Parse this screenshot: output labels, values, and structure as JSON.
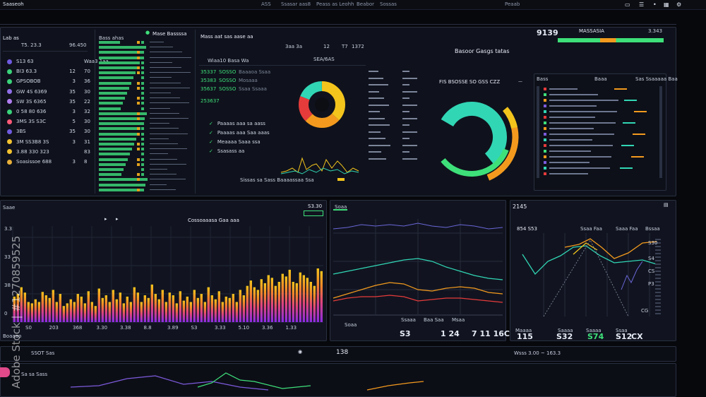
{
  "topbar": {
    "left": "Saaseoh",
    "items": [
      "ASS",
      "Ssasar aas8",
      "Peass as Leohh",
      "Beabor",
      "Sossas"
    ],
    "right_label": "Peaab"
  },
  "left_panel": {
    "title": "Lab as",
    "values": [
      "T5. 23.3",
      "96.450"
    ],
    "rows": [
      {
        "label": "S13 63",
        "v1": "",
        "v2": "Waa3 1aa"
      },
      {
        "label": "BI3 63.3",
        "v1": "12",
        "v2": "70"
      },
      {
        "label": "GPSOBOB",
        "v1": "3",
        "v2": "36"
      },
      {
        "label": "GW 4S 6369",
        "v1": "35",
        "v2": "30"
      },
      {
        "label": "SW 3S 6365",
        "v1": "35",
        "v2": "22"
      },
      {
        "label": "0 58 80 636",
        "v1": "3",
        "v2": "32"
      },
      {
        "label": "3MS 3S S3C",
        "v1": "5",
        "v2": "30"
      },
      {
        "label": "3BS",
        "v1": "35",
        "v2": "30"
      },
      {
        "label": "3M SS3B8 3S",
        "v1": "3",
        "v2": "31"
      },
      {
        "label": "3.88 330 323",
        "v1": "",
        "v2": "83"
      },
      {
        "label": "Soasissoe 688",
        "v1": "3",
        "v2": "8"
      }
    ],
    "row_colors": [
      "#6f5be0",
      "#3ad27a",
      "#3ad27a",
      "#8f6ee8",
      "#b07ef0",
      "#3ad27a",
      "#ff5a78",
      "#6f5be0",
      "#f2c230",
      "#f2c230",
      "#e8b03a"
    ]
  },
  "list_panel": {
    "title": "Bass ahas",
    "header": "Mase Bassssa"
  },
  "top_center": {
    "title": "Mass aat sas aase aa",
    "subtitle": "Wiaa10 Basa Wa",
    "stats": [
      {
        "a": "35337",
        "b": "SOSSO",
        "c": "Baaaoa Ssaa"
      },
      {
        "a": "35383",
        "b": "SOSSO",
        "c": "Mosaaa"
      },
      {
        "a": "35637",
        "b": "SOSSO",
        "c": "Ssaa Ssaaa"
      }
    ],
    "stat_big": "253637",
    "small_counts": [
      "3aa 3a",
      "12",
      "T7",
      "1372"
    ],
    "ring_label": "SEA/6AS",
    "caption": "Sissas sa Sass Baaaassaa Ssa",
    "tasks": [
      "Paaaas aaa sa aass",
      "Paaaas aaa Saa aaas",
      "Meaaaa Saaa ssa",
      "Ssasass aa"
    ]
  },
  "top_right": {
    "title": "Basoor Gasgs tatas",
    "mid_title": "FIS BSOSSE SO GSS CZZ",
    "stat_a": "9139",
    "stat_b": "MASSASIA",
    "stat_c": "3.343",
    "list_header": [
      "Bass",
      "Baaa",
      "Sas Ssaaaaa Baa"
    ],
    "list_rows": 9
  },
  "bottom_left": {
    "title": "Saae",
    "value": "S3.30",
    "header": "Cossoaaasa Gaa aaa",
    "x_labels": [
      "S0",
      "203",
      "368",
      "3.30",
      "3.38",
      "8.8",
      "3.89",
      "S3",
      "3.33",
      "5.10",
      "3.36",
      "1.33"
    ],
    "y_labels": [
      "0",
      "38",
      "33",
      "3.3"
    ],
    "bottom": "Boaaao"
  },
  "bottom_mid": {
    "title": "Soaa",
    "legend": [
      "Ssaaa",
      "Baa Saa",
      "Msaa"
    ],
    "values": [
      "S3",
      "1 24",
      "7 11 16C"
    ]
  },
  "bottom_right": {
    "title": "2145",
    "subtitle": "854 S53",
    "labels": [
      "Ssaa Faa",
      "Saaa Faa",
      "Bssaa"
    ],
    "y_labels": [
      "S30",
      "S4",
      "CS",
      "CG",
      "P3"
    ],
    "bottom": [
      "Maaaa",
      "Saaaa",
      "Saaaa",
      "Ssaa"
    ],
    "bottom_vals": [
      "115",
      "S32",
      "S74",
      "S12",
      "CX"
    ]
  },
  "footer": {
    "label": "SSOT Sas",
    "value": "138",
    "right": "Wsss 3.00 ~ 163.3",
    "legend": "Sa sa Sass"
  },
  "bar_chart_data": {
    "type": "bar",
    "values": [
      38,
      42,
      52,
      44,
      30,
      28,
      34,
      30,
      45,
      40,
      36,
      48,
      30,
      42,
      24,
      28,
      34,
      30,
      42,
      38,
      28,
      46,
      30,
      24,
      50,
      36,
      40,
      30,
      48,
      34,
      44,
      28,
      38,
      30,
      52,
      44,
      30,
      40,
      36,
      56,
      42,
      34,
      48,
      30,
      44,
      40,
      28,
      46,
      32,
      38,
      30,
      48,
      36,
      42,
      30,
      52,
      40,
      34,
      46,
      30,
      38,
      36,
      42,
      30,
      48,
      40,
      54,
      62,
      52,
      48,
      64,
      58,
      70,
      66,
      54,
      60,
      72,
      68,
      78,
      60,
      58,
      74,
      70,
      66,
      60,
      54,
      80,
      76
    ]
  },
  "colors": {
    "accent_green": "#3ee07a",
    "accent_teal": "#31d6b5",
    "accent_orange": "#f39a1e",
    "accent_red": "#e53b3b",
    "accent_purple": "#7c5bdc",
    "accent_yellow": "#f3c41c"
  }
}
